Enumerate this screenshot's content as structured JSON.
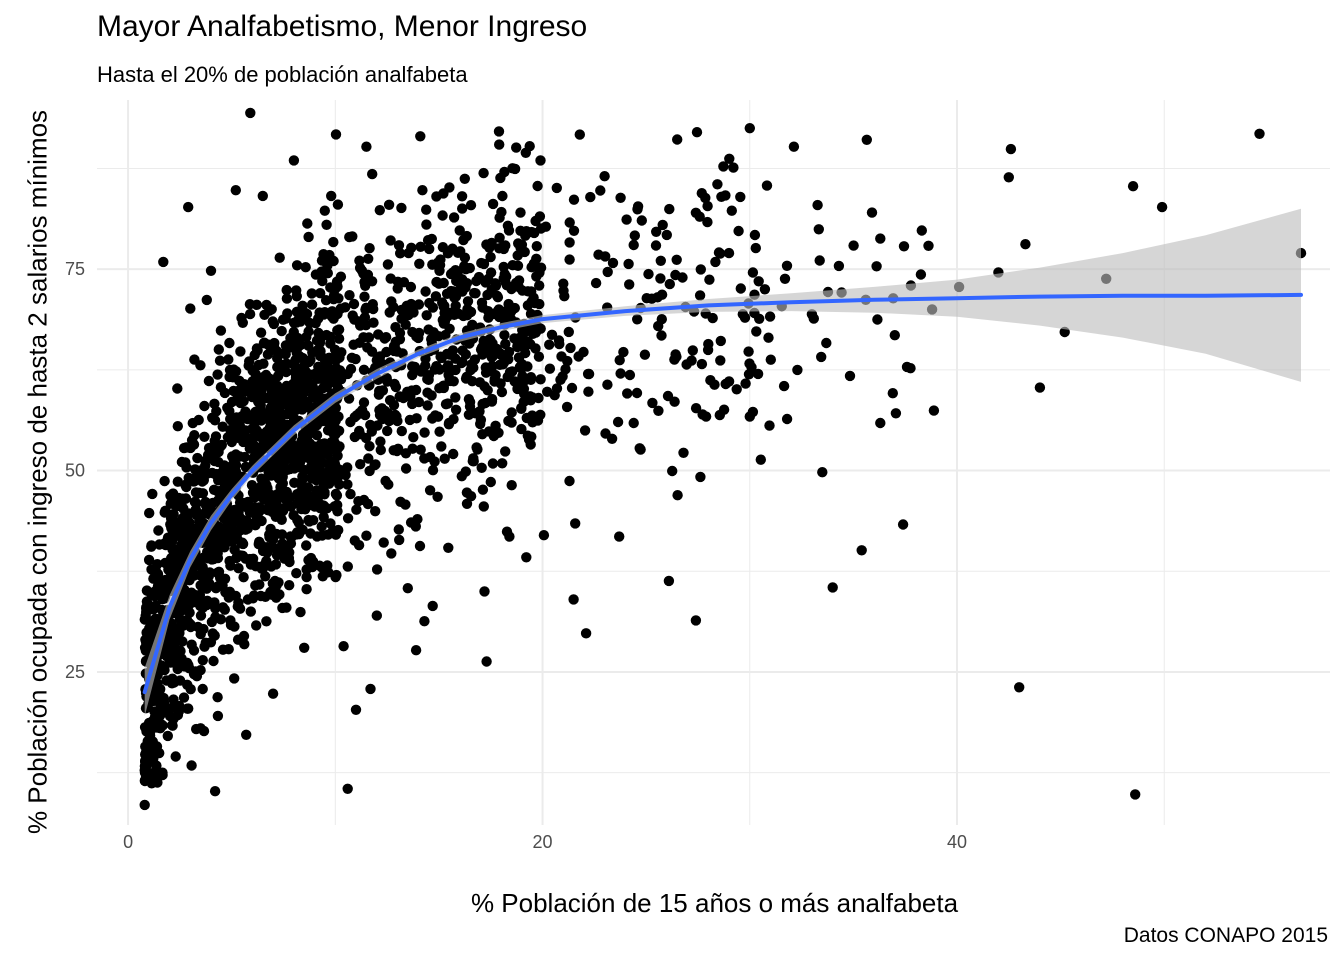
{
  "title": "Mayor Analfabetismo, Menor Ingreso",
  "subtitle": "Hasta el 20% de población analfabeta",
  "caption": "Datos CONAPO 2015",
  "colors": {
    "points": "#000000",
    "smooth_line": "#3366FF",
    "ribbon": "#BDBDBD",
    "grid": "#EBEBEB",
    "tick_text": "#4D4D4D"
  },
  "chart_data": {
    "type": "scatter",
    "xlabel": "% Población de 15 años o más analfabeta",
    "ylabel": "% Población ocupada con ingreso de hasta 2 salarios mínimos",
    "xlim": [
      -1.5,
      58
    ],
    "ylim": [
      6,
      96
    ],
    "x_ticks": [
      0,
      20,
      40
    ],
    "y_ticks": [
      25,
      50,
      75
    ],
    "grid": true,
    "legend": "none",
    "points_summary": {
      "approx_count": 2400,
      "note": "dense cloud: most points between x 0.5–20 and y 10–92, sparser to x 56"
    },
    "points_sample": [
      [
        0.8,
        8.5
      ],
      [
        4.2,
        10.2
      ],
      [
        10.6,
        10.5
      ],
      [
        48.6,
        9.8
      ],
      [
        5.9,
        94.4
      ],
      [
        54.6,
        91.8
      ],
      [
        56.6,
        77.0
      ],
      [
        48.5,
        85.3
      ],
      [
        49.9,
        82.7
      ],
      [
        47.2,
        73.8
      ],
      [
        42.6,
        89.9
      ],
      [
        42.5,
        86.4
      ],
      [
        43.3,
        78.1
      ],
      [
        42.0,
        74.6
      ],
      [
        44.0,
        60.3
      ],
      [
        43.0,
        23.1
      ],
      [
        45.2,
        67.2
      ],
      [
        40.1,
        72.8
      ],
      [
        38.8,
        70.0
      ],
      [
        35.4,
        40.1
      ],
      [
        34.0,
        35.5
      ],
      [
        37.4,
        43.3
      ],
      [
        27.4,
        31.4
      ],
      [
        26.1,
        36.3
      ],
      [
        22.1,
        29.8
      ],
      [
        21.5,
        34.0
      ],
      [
        17.3,
        26.3
      ],
      [
        17.2,
        35.0
      ],
      [
        18.4,
        41.8
      ],
      [
        1.7,
        75.9
      ],
      [
        2.9,
        82.7
      ],
      [
        11.0,
        20.3
      ],
      [
        11.7,
        22.9
      ],
      [
        13.9,
        27.7
      ],
      [
        14.7,
        33.2
      ],
      [
        13.5,
        35.4
      ],
      [
        23.7,
        41.8
      ],
      [
        21.3,
        48.7
      ],
      [
        24.4,
        55.9
      ],
      [
        26.8,
        52.2
      ],
      [
        30.0,
        56.7
      ],
      [
        33.5,
        49.8
      ],
      [
        31.8,
        56.4
      ],
      [
        30.4,
        62.0
      ],
      [
        28.0,
        65.7
      ],
      [
        33.0,
        69.4
      ],
      [
        36.3,
        55.9
      ],
      [
        36.9,
        59.6
      ],
      [
        35.6,
        71.2
      ],
      [
        37.0,
        66.8
      ],
      [
        30.0,
        92.5
      ],
      [
        26.5,
        91.1
      ],
      [
        21.8,
        91.7
      ],
      [
        19.9,
        88.5
      ],
      [
        17.9,
        92.1
      ],
      [
        14.1,
        91.5
      ],
      [
        11.5,
        90.2
      ],
      [
        9.8,
        84.1
      ],
      [
        8.0,
        88.5
      ],
      [
        6.5,
        84.1
      ],
      [
        5.2,
        84.8
      ],
      [
        4.0,
        74.8
      ],
      [
        3.0,
        70.1
      ],
      [
        2.4,
        55.5
      ],
      [
        1.8,
        45.0
      ],
      [
        1.5,
        35.0
      ],
      [
        1.3,
        25.0
      ],
      [
        1.6,
        18.5
      ],
      [
        2.3,
        14.5
      ],
      [
        3.5,
        18.0
      ],
      [
        5.7,
        17.2
      ],
      [
        7.0,
        22.3
      ],
      [
        8.5,
        28.0
      ],
      [
        10.4,
        28.2
      ],
      [
        12.0,
        32.0
      ],
      [
        14.3,
        31.3
      ],
      [
        4.5,
        49.7
      ],
      [
        6.2,
        55.0
      ],
      [
        8.1,
        60.0
      ],
      [
        9.7,
        64.0
      ],
      [
        11.2,
        68.0
      ],
      [
        12.7,
        71.0
      ],
      [
        14.9,
        73.4
      ],
      [
        16.3,
        75.0
      ],
      [
        18.1,
        77.8
      ],
      [
        19.6,
        79.5
      ],
      [
        21.0,
        73.2
      ],
      [
        22.7,
        76.8
      ],
      [
        24.4,
        78.0
      ],
      [
        25.8,
        80.5
      ],
      [
        27.4,
        82.0
      ],
      [
        29.0,
        77.0
      ],
      [
        31.7,
        73.8
      ],
      [
        34.3,
        75.4
      ],
      [
        36.3,
        78.8
      ],
      [
        38.3,
        79.8
      ],
      [
        3.6,
        38.0
      ],
      [
        5.0,
        42.0
      ],
      [
        6.8,
        46.0
      ],
      [
        8.8,
        50.0
      ],
      [
        10.2,
        53.0
      ],
      [
        12.4,
        57.4
      ],
      [
        13.9,
        60.0
      ],
      [
        15.8,
        62.5
      ],
      [
        17.6,
        64.2
      ],
      [
        19.3,
        66.0
      ],
      [
        20.7,
        60.2
      ],
      [
        22.2,
        62.0
      ],
      [
        23.9,
        64.7
      ],
      [
        25.3,
        58.4
      ],
      [
        26.9,
        70.3
      ],
      [
        28.6,
        66.1
      ],
      [
        29.8,
        60.8
      ],
      [
        32.3,
        62.5
      ]
    ],
    "smooth": {
      "method": "loess",
      "x": [
        0.8,
        2,
        3,
        4,
        5,
        6,
        8,
        10,
        12,
        14,
        16,
        18,
        20,
        24,
        28,
        32,
        36,
        40,
        44,
        48,
        52,
        56.6
      ],
      "y": [
        22.5,
        33.0,
        39.0,
        43.5,
        47.0,
        50.0,
        55.0,
        59.0,
        62.0,
        64.5,
        66.5,
        67.8,
        68.8,
        69.8,
        70.5,
        70.9,
        71.2,
        71.4,
        71.6,
        71.7,
        71.7,
        71.8
      ],
      "ci_lower": [
        19.5,
        31.5,
        38.0,
        42.6,
        46.3,
        49.4,
        54.4,
        58.4,
        61.4,
        64.0,
        66.0,
        67.3,
        68.3,
        69.2,
        69.7,
        69.8,
        69.6,
        69.1,
        68.0,
        66.5,
        64.5,
        61.0
      ],
      "ci_upper": [
        25.5,
        34.5,
        40.0,
        44.4,
        47.7,
        50.6,
        55.6,
        59.6,
        62.6,
        65.0,
        67.0,
        68.3,
        69.3,
        70.4,
        71.3,
        72.0,
        72.8,
        73.7,
        75.2,
        77.0,
        79.2,
        82.5
      ]
    }
  }
}
